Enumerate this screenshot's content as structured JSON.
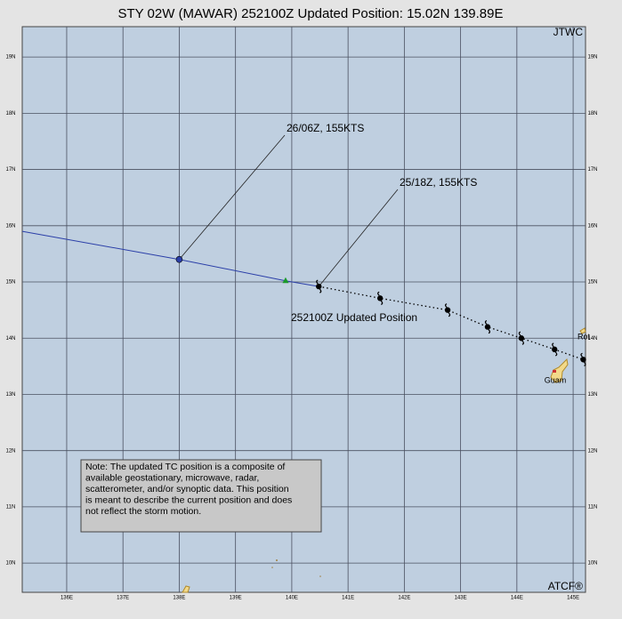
{
  "title": "STY 02W (MAWAR) 252100Z Updated Position: 15.02N 139.89E",
  "agency": "JTWC",
  "footer": "ATCF®",
  "map": {
    "lonlim": [
      135.21,
      145.22
    ],
    "latlim": [
      9.48,
      19.54
    ],
    "lonticks": [
      {
        "value": 136,
        "label": "136E"
      },
      {
        "value": 137,
        "label": "137E"
      },
      {
        "value": 138,
        "label": "138E"
      },
      {
        "value": 139,
        "label": "139E"
      },
      {
        "value": 140,
        "label": "140E"
      },
      {
        "value": 141,
        "label": "141E"
      },
      {
        "value": 142,
        "label": "142E"
      },
      {
        "value": 143,
        "label": "143E"
      },
      {
        "value": 144,
        "label": "144E"
      },
      {
        "value": 145,
        "label": "145E"
      }
    ],
    "latticks": [
      {
        "value": 10,
        "label": "10N"
      },
      {
        "value": 11,
        "label": "11N"
      },
      {
        "value": 12,
        "label": "12N"
      },
      {
        "value": 13,
        "label": "13N"
      },
      {
        "value": 14,
        "label": "14N"
      },
      {
        "value": 15,
        "label": "15N"
      },
      {
        "value": 16,
        "label": "16N"
      },
      {
        "value": 17,
        "label": "17N"
      },
      {
        "value": 18,
        "label": "18N"
      },
      {
        "value": 19,
        "label": "19N"
      }
    ]
  },
  "forecast_track": {
    "color": "#2b3fa8",
    "lon": [
      135.21,
      138.0,
      139.89,
      140.48
    ],
    "lat": [
      15.9,
      15.4,
      15.02,
      14.92
    ]
  },
  "past_track": {
    "color": "#000000",
    "lon": [
      140.48,
      141.57,
      142.77,
      143.48,
      144.08,
      144.67,
      145.18
    ],
    "lat": [
      14.92,
      14.71,
      14.5,
      14.2,
      14.0,
      13.8,
      13.62
    ]
  },
  "updated_position": {
    "lat": 15.02,
    "lon": 139.89,
    "color": "#1a9a2a"
  },
  "annotations": [
    "26/06Z, 155KTS",
    "25/18Z, 155KTS",
    "252100Z Updated Position"
  ],
  "places": [
    "Guam",
    "Rot"
  ],
  "note": [
    "Note:  The updated TC position is a composite of",
    "available geostationary, microwave, radar,",
    "scatterometer, and/or synoptic data.  This position",
    "is meant to describe the current position and does",
    "not reflect the storm motion."
  ]
}
